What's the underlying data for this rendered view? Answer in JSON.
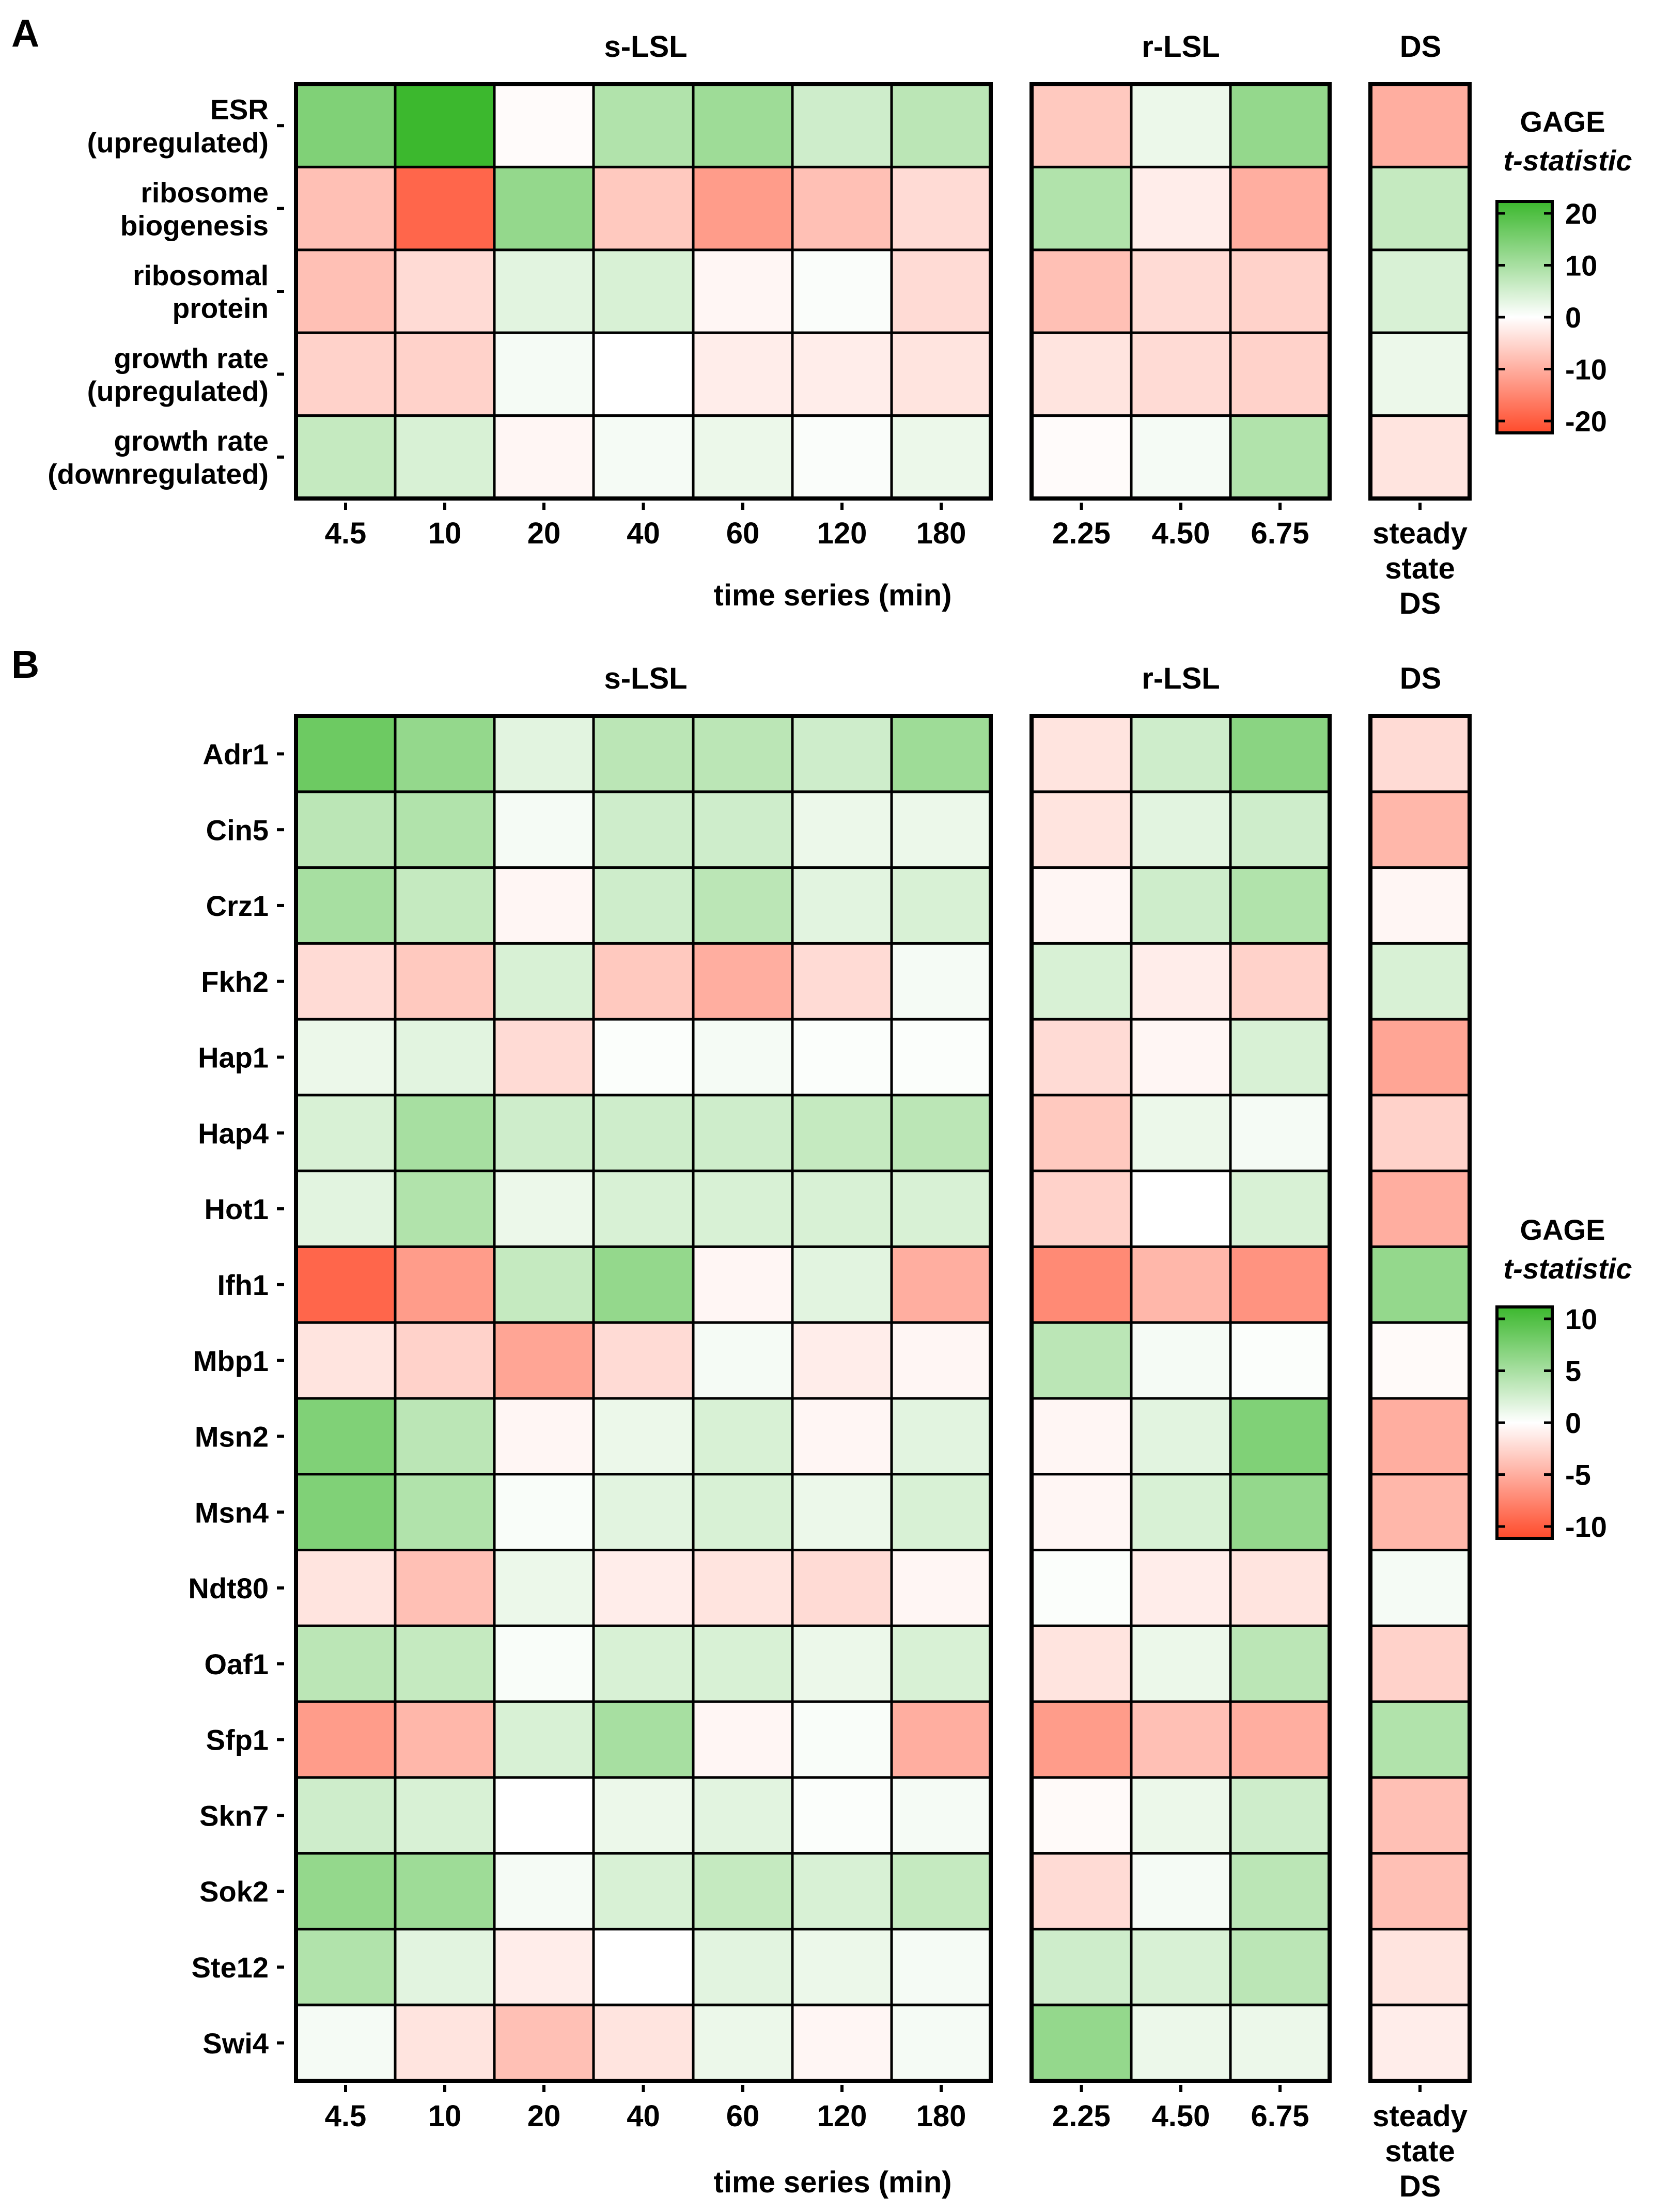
{
  "colors": {
    "green": "#3cb82e",
    "white": "#ffffff",
    "red": "#ff4b2b",
    "grid": "#000000"
  },
  "chart_data": [
    {
      "type": "heatmap",
      "panel_label": "A",
      "group_labels": [
        "s-LSL",
        "r-LSL",
        "DS"
      ],
      "rows": [
        "ESR\n(upregulated)",
        "ribosome\nbiogenesis",
        "ribosomal\nprotein",
        "growth rate\n(upregulated)",
        "growth rate\n(downregulated)"
      ],
      "groups": [
        {
          "name": "s-LSL",
          "columns": [
            "4.5",
            "10",
            "20",
            "40",
            "60",
            "120",
            "180"
          ]
        },
        {
          "name": "r-LSL",
          "columns": [
            "2.25",
            "4.50",
            "6.75"
          ]
        },
        {
          "name": "DS",
          "columns": [
            "steady\nstate\nDS"
          ]
        }
      ],
      "values": [
        [
          13,
          21,
          -0.5,
          8,
          10,
          5,
          7,
          -6,
          2,
          11,
          -9
        ],
        [
          -7,
          -17,
          11,
          -6,
          -11,
          -7,
          -4,
          8,
          -2,
          -9,
          6
        ],
        [
          -7,
          -4,
          3,
          4,
          -1,
          0.5,
          -4,
          -7,
          -4,
          -5,
          4
        ],
        [
          -5,
          -5,
          1,
          0,
          -2,
          -2,
          -3,
          -3,
          -4,
          -5,
          2
        ],
        [
          6,
          4,
          -1,
          1,
          2,
          0.5,
          2,
          -0.5,
          1,
          8,
          -3
        ]
      ],
      "x_axis_label": "time series (min)",
      "legend": {
        "title": "GAGE",
        "title_line2": "t-statistic",
        "ticks": [
          "20",
          "10",
          "0",
          "-10",
          "-20"
        ],
        "max": 20,
        "min": -20
      },
      "value_range": [
        -20,
        20
      ]
    },
    {
      "type": "heatmap",
      "panel_label": "B",
      "group_labels": [
        "s-LSL",
        "r-LSL",
        "DS"
      ],
      "rows": [
        "Adr1",
        "Cin5",
        "Crz1",
        "Fkh2",
        "Hap1",
        "Hap4",
        "Hot1",
        "Ifh1",
        "Mbp1",
        "Msn2",
        "Msn4",
        "Ndt80",
        "Oaf1",
        "Sfp1",
        "Skn7",
        "Sok2",
        "Ste12",
        "Swi4"
      ],
      "groups": [
        {
          "name": "s-LSL",
          "columns": [
            "4.5",
            "10",
            "20",
            "40",
            "60",
            "120",
            "180"
          ]
        },
        {
          "name": "r-LSL",
          "columns": [
            "2.25",
            "4.50",
            "6.75"
          ]
        },
        {
          "name": "DS",
          "columns": [
            "steady\nstate\nDS"
          ]
        }
      ],
      "values": [
        [
          7.5,
          5.5,
          1.5,
          3.5,
          3.5,
          2.5,
          5,
          -1.5,
          2.5,
          6,
          -2
        ],
        [
          3.5,
          4,
          0.5,
          2.5,
          2.5,
          1,
          1,
          -1.5,
          1.5,
          2.5,
          -4
        ],
        [
          4.5,
          3,
          -0.5,
          2.5,
          3.5,
          1.5,
          2,
          -0.5,
          2.5,
          4,
          -0.5
        ],
        [
          -2,
          -3,
          2,
          -3,
          -4.5,
          -2,
          0.5,
          2,
          -1,
          -2.5,
          2
        ],
        [
          1,
          1.5,
          -2,
          0.2,
          0.5,
          0.2,
          0.2,
          -2,
          -0.5,
          2,
          -5
        ],
        [
          2,
          4.5,
          2.5,
          2.5,
          2.5,
          3,
          3.5,
          -3,
          1,
          0.5,
          -2.5
        ],
        [
          1.5,
          4,
          1,
          2,
          2,
          2,
          2,
          -2.5,
          0,
          2,
          -4.5
        ],
        [
          -8.5,
          -5.5,
          3,
          5.5,
          -0.5,
          1.5,
          -4.5,
          -6.5,
          -4,
          -6,
          5.5
        ],
        [
          -1.5,
          -2.5,
          -5,
          -2,
          0.5,
          -1,
          -0.5,
          3.5,
          0.5,
          0.2,
          -0.3
        ],
        [
          6.5,
          3.5,
          -0.5,
          1,
          2,
          -0.5,
          1.5,
          -0.5,
          1.5,
          6.5,
          -4.5
        ],
        [
          6.5,
          4,
          0.3,
          1.5,
          2,
          1,
          2,
          -0.5,
          2,
          5.5,
          -4
        ],
        [
          -1.5,
          -3.5,
          1,
          -1,
          -1.5,
          -2,
          -0.5,
          0.2,
          -1,
          -1.5,
          0.5
        ],
        [
          3.5,
          3,
          0.3,
          2,
          2,
          1,
          2,
          -1.5,
          1,
          3.5,
          -2.5
        ],
        [
          -5.5,
          -4,
          2,
          4.5,
          -0.5,
          0.3,
          -4.5,
          -5.5,
          -3.5,
          -4.5,
          4
        ],
        [
          2.5,
          2,
          0,
          1,
          1.5,
          0.2,
          0.5,
          -0.3,
          1,
          2.5,
          -3.5
        ],
        [
          5.5,
          5,
          0.5,
          2,
          3,
          2,
          3,
          -2,
          0.5,
          3.5,
          -3.5
        ],
        [
          4,
          1.5,
          -1,
          0,
          1.5,
          1,
          0.5,
          2.5,
          2,
          3.5,
          -1.5
        ],
        [
          0.5,
          -1.5,
          -3.5,
          -1.5,
          1,
          -0.5,
          0.5,
          5.5,
          1,
          1,
          -1
        ]
      ],
      "x_axis_label": "time series (min)",
      "legend": {
        "title": "GAGE",
        "title_line2": "t-statistic",
        "ticks": [
          "10",
          "5",
          "0",
          "-5",
          "-10"
        ],
        "max": 10,
        "min": -10
      },
      "value_range": [
        -10,
        10
      ]
    }
  ]
}
